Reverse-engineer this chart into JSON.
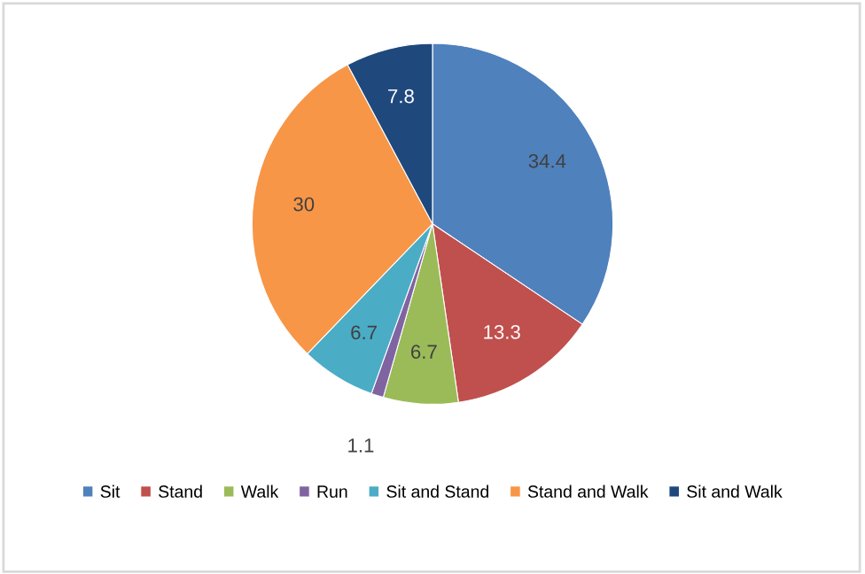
{
  "chart_data": {
    "type": "pie",
    "categories": [
      "Sit",
      "Stand",
      "Walk",
      "Run",
      "Sit and Stand",
      "Stand and Walk",
      "Sit and Walk"
    ],
    "values": [
      34.4,
      13.3,
      6.7,
      1.1,
      6.7,
      30,
      7.8
    ],
    "colors": [
      "#4f81bd",
      "#c0504d",
      "#9bbb59",
      "#8064a2",
      "#4bacc6",
      "#f79646",
      "#1f497d"
    ],
    "data_labels": true,
    "legend": "bottom"
  }
}
